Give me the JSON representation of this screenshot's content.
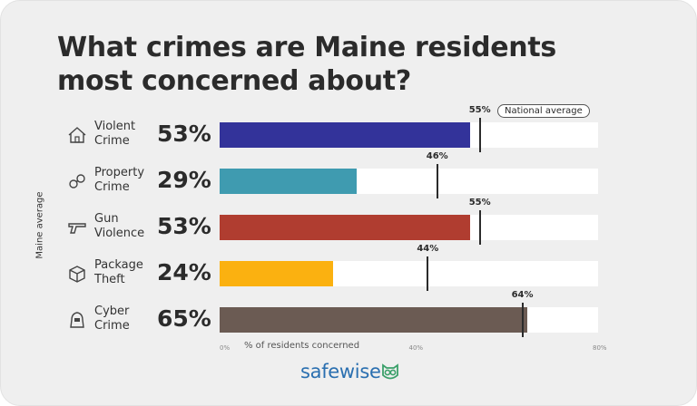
{
  "title": "What crimes are Maine residents most concerned about?",
  "ylabel": "Maine average",
  "national_average_label": "National average",
  "xlabel": "% of residents concerned",
  "brand": {
    "logo_text": "safewise",
    "icon": "owl-icon"
  },
  "chart_data": {
    "type": "bar",
    "orientation": "horizontal",
    "title": "What crimes are Maine residents most concerned about?",
    "ylabel": "Maine average",
    "xlabel": "% of residents concerned",
    "xlim": [
      0,
      80
    ],
    "xticks": [
      "0%",
      "40%",
      "80%"
    ],
    "categories": [
      "Violent Crime",
      "Property Crime",
      "Gun Violence",
      "Package Theft",
      "Cyber Crime"
    ],
    "series": [
      {
        "values": [
          53,
          29,
          53,
          24,
          65
        ],
        "labels": [
          "53%",
          "29%",
          "53%",
          "24%",
          "65%"
        ]
      },
      {
        "name": "National average",
        "values": [
          55,
          46,
          55,
          44,
          64
        ],
        "labels": [
          "55%",
          "46%",
          "55%",
          "44%",
          "64%"
        ]
      }
    ],
    "colors": [
      "#33339a",
      "#3f9bb0",
      "#b03d30",
      "#fbb110",
      "#6b5b53"
    ],
    "icons": [
      "house-icon",
      "handcuffs-icon",
      "gun-icon",
      "package-icon",
      "hacker-icon"
    ]
  }
}
